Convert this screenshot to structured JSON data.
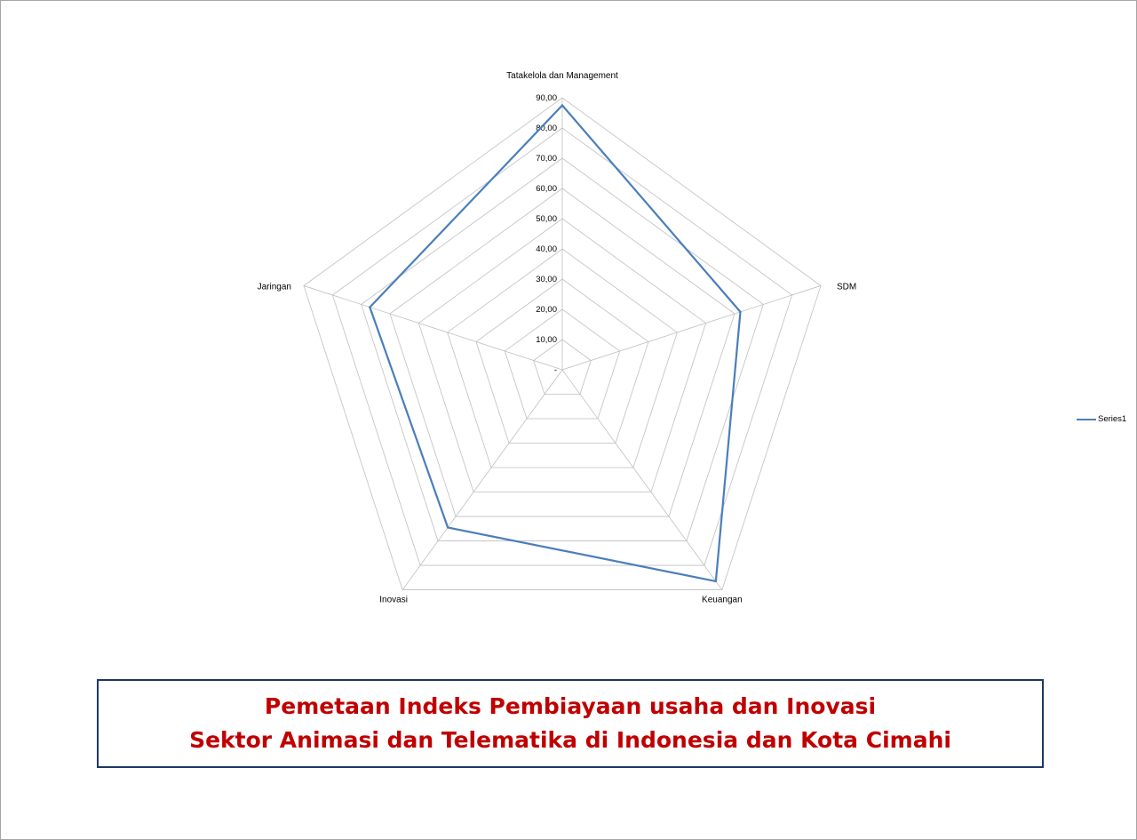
{
  "chart_data": {
    "type": "radar",
    "categories": [
      "Tatakelola dan Management",
      "SDM",
      "Keuangan",
      "Inovasi",
      "Jaringan"
    ],
    "series": [
      {
        "name": "Series1",
        "values": [
          87.5,
          62,
          86.5,
          64.5,
          67
        ],
        "color": "#4a7ebb"
      }
    ],
    "rmin": 0,
    "rmax": 90,
    "ticks": [
      "-",
      "10,00",
      "20,00",
      "30,00",
      "40,00",
      "50,00",
      "60,00",
      "70,00",
      "80,00",
      "90,00"
    ],
    "grid": true,
    "legend": "right"
  },
  "title": {
    "line1": "Pemetaan Indeks Pembiayaan usaha dan Inovasi",
    "line2": "Sektor Animasi dan Telematika di Indonesia dan Kota Cimahi"
  }
}
